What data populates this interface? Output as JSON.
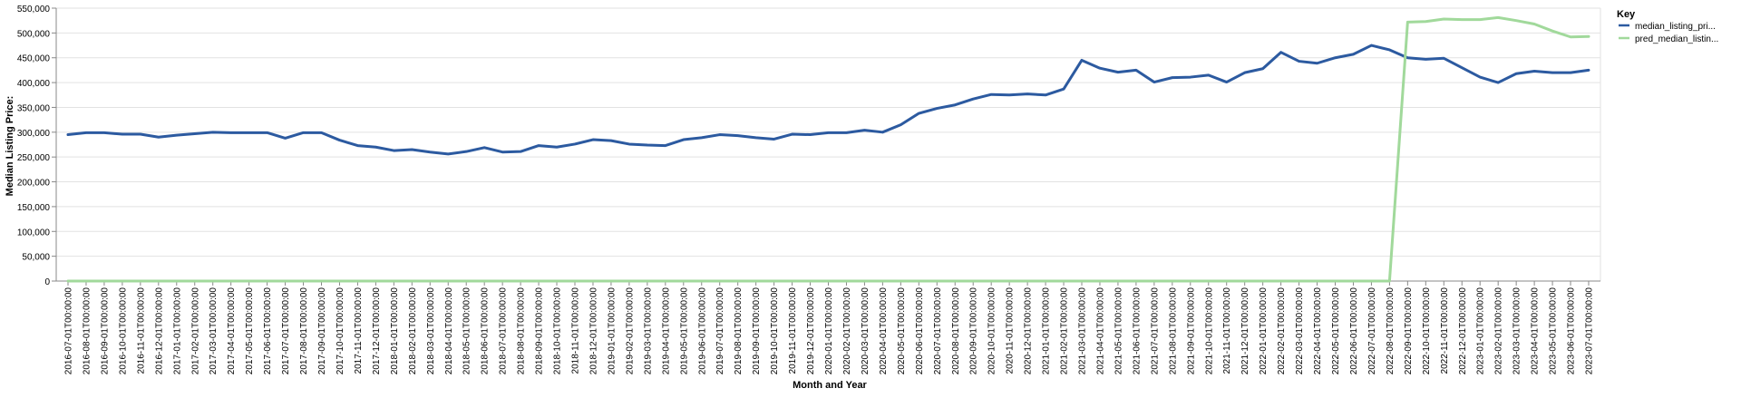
{
  "chart_data": {
    "type": "line",
    "xlabel": "Month and Year",
    "ylabel": "Median Listing Price:",
    "ylim": [
      0,
      550000
    ],
    "yticks": [
      0,
      50000,
      100000,
      150000,
      200000,
      250000,
      300000,
      350000,
      400000,
      450000,
      500000,
      550000
    ],
    "ytick_labels": [
      "0",
      "50,000",
      "100,000",
      "150,000",
      "200,000",
      "250,000",
      "300,000",
      "350,000",
      "400,000",
      "450,000",
      "500,000",
      "550,000"
    ],
    "grid": true,
    "legend_title": "Key",
    "legend_position": "top-right",
    "x": [
      "2016-07-01T00:00:00",
      "2016-08-01T00:00:00",
      "2016-09-01T00:00:00",
      "2016-10-01T00:00:00",
      "2016-11-01T00:00:00",
      "2016-12-01T00:00:00",
      "2017-01-01T00:00:00",
      "2017-02-01T00:00:00",
      "2017-03-01T00:00:00",
      "2017-04-01T00:00:00",
      "2017-05-01T00:00:00",
      "2017-06-01T00:00:00",
      "2017-07-01T00:00:00",
      "2017-08-01T00:00:00",
      "2017-09-01T00:00:00",
      "2017-10-01T00:00:00",
      "2017-11-01T00:00:00",
      "2017-12-01T00:00:00",
      "2018-01-01T00:00:00",
      "2018-02-01T00:00:00",
      "2018-03-01T00:00:00",
      "2018-04-01T00:00:00",
      "2018-05-01T00:00:00",
      "2018-06-01T00:00:00",
      "2018-07-01T00:00:00",
      "2018-08-01T00:00:00",
      "2018-09-01T00:00:00",
      "2018-10-01T00:00:00",
      "2018-11-01T00:00:00",
      "2018-12-01T00:00:00",
      "2019-01-01T00:00:00",
      "2019-02-01T00:00:00",
      "2019-03-01T00:00:00",
      "2019-04-01T00:00:00",
      "2019-05-01T00:00:00",
      "2019-06-01T00:00:00",
      "2019-07-01T00:00:00",
      "2019-08-01T00:00:00",
      "2019-09-01T00:00:00",
      "2019-10-01T00:00:00",
      "2019-11-01T00:00:00",
      "2019-12-01T00:00:00",
      "2020-01-01T00:00:00",
      "2020-02-01T00:00:00",
      "2020-03-01T00:00:00",
      "2020-04-01T00:00:00",
      "2020-05-01T00:00:00",
      "2020-06-01T00:00:00",
      "2020-07-01T00:00:00",
      "2020-08-01T00:00:00",
      "2020-09-01T00:00:00",
      "2020-10-01T00:00:00",
      "2020-11-01T00:00:00",
      "2020-12-01T00:00:00",
      "2021-01-01T00:00:00",
      "2021-02-01T00:00:00",
      "2021-03-01T00:00:00",
      "2021-04-01T00:00:00",
      "2021-05-01T00:00:00",
      "2021-06-01T00:00:00",
      "2021-07-01T00:00:00",
      "2021-08-01T00:00:00",
      "2021-09-01T00:00:00",
      "2021-10-01T00:00:00",
      "2021-11-01T00:00:00",
      "2021-12-01T00:00:00",
      "2022-01-01T00:00:00",
      "2022-02-01T00:00:00",
      "2022-03-01T00:00:00",
      "2022-04-01T00:00:00",
      "2022-05-01T00:00:00",
      "2022-06-01T00:00:00",
      "2022-07-01T00:00:00",
      "2022-08-01T00:00:00",
      "2022-09-01T00:00:00",
      "2022-10-01T00:00:00",
      "2022-11-01T00:00:00",
      "2022-12-01T00:00:00",
      "2023-01-01T00:00:00",
      "2023-02-01T00:00:00",
      "2023-03-01T00:00:00",
      "2023-04-01T00:00:00",
      "2023-05-01T00:00:00",
      "2023-06-01T00:00:00",
      "2023-07-01T00:00:00"
    ],
    "series": [
      {
        "name": "median_listing_pri...",
        "color": "#2c5aa0",
        "values": [
          295000,
          299000,
          299000,
          296000,
          296000,
          290000,
          294000,
          297000,
          300000,
          299000,
          299000,
          299000,
          288000,
          299000,
          299000,
          284000,
          273000,
          270000,
          263000,
          265000,
          260000,
          256000,
          261000,
          269000,
          260000,
          261000,
          273000,
          270000,
          276000,
          285000,
          283000,
          276000,
          274000,
          273000,
          285000,
          289000,
          295000,
          293000,
          289000,
          286000,
          296000,
          295000,
          299000,
          299000,
          304000,
          300000,
          315000,
          338000,
          348000,
          355000,
          367000,
          376000,
          375000,
          377000,
          375000,
          387000,
          445000,
          429000,
          421000,
          425000,
          401000,
          410000,
          411000,
          415000,
          401000,
          420000,
          428000,
          461000,
          443000,
          439000,
          450000,
          457000,
          475000,
          466000,
          450000,
          447000,
          449000,
          430000,
          411000,
          400000,
          418000,
          423000,
          420000,
          420000,
          425000
        ]
      },
      {
        "name": "pred_median_listin...",
        "color": "#a1d99b",
        "values": [
          0,
          0,
          0,
          0,
          0,
          0,
          0,
          0,
          0,
          0,
          0,
          0,
          0,
          0,
          0,
          0,
          0,
          0,
          0,
          0,
          0,
          0,
          0,
          0,
          0,
          0,
          0,
          0,
          0,
          0,
          0,
          0,
          0,
          0,
          0,
          0,
          0,
          0,
          0,
          0,
          0,
          0,
          0,
          0,
          0,
          0,
          0,
          0,
          0,
          0,
          0,
          0,
          0,
          0,
          0,
          0,
          0,
          0,
          0,
          0,
          0,
          0,
          0,
          0,
          0,
          0,
          0,
          0,
          0,
          0,
          0,
          0,
          0,
          0,
          522000,
          523000,
          528000,
          527000,
          527000,
          531000,
          525000,
          518000,
          504000,
          492000,
          493000
        ]
      }
    ]
  }
}
